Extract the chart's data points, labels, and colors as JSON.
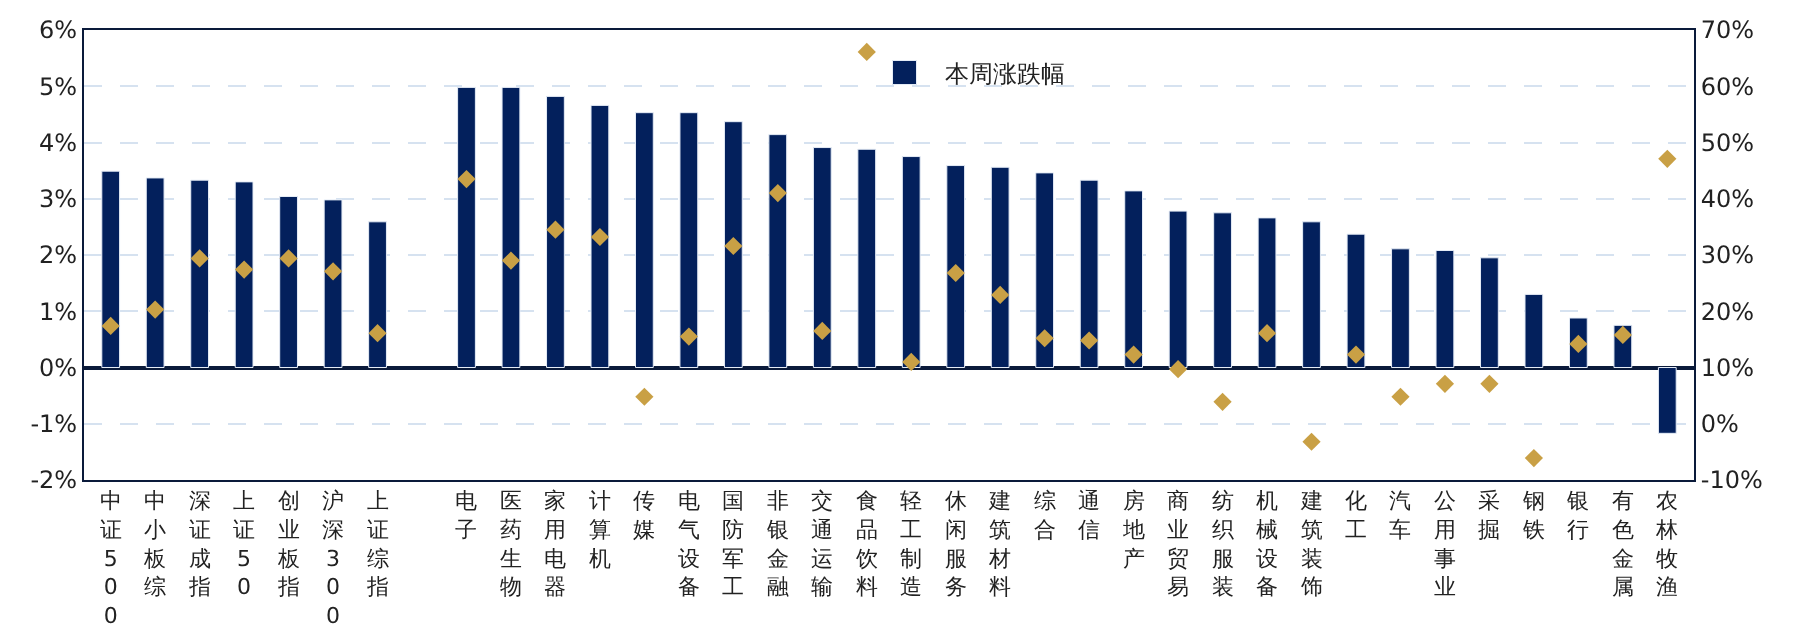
{
  "chart_data": {
    "type": "bar",
    "categories": [
      "中证500",
      "中小板综",
      "深证成指",
      "上证50",
      "创业板指",
      "沪深300",
      "上证综指",
      null,
      "电子",
      "医药生物",
      "家用电器",
      "计算机",
      "传媒",
      "电气设备",
      "国防军工",
      "非银金融",
      "交通运输",
      "食品饮料",
      "轻工制造",
      "休闲服务",
      "建筑材料",
      "综合",
      "通信",
      "房地产",
      "商业贸易",
      "纺织服装",
      "机械设备",
      "建筑装饰",
      "化工",
      "汽车",
      "公用事业",
      "采掘",
      "钢铁",
      "银行",
      "有色金属",
      "农林牧渔"
    ],
    "series": [
      {
        "name": "本周涨跌幅",
        "color": "#03205c",
        "values": [
          3.49,
          3.37,
          3.33,
          3.3,
          3.04,
          2.98,
          2.59,
          null,
          4.98,
          4.98,
          4.82,
          4.66,
          4.53,
          4.53,
          4.37,
          4.14,
          3.91,
          3.88,
          3.75,
          3.59,
          3.56,
          3.46,
          3.33,
          3.14,
          2.78,
          2.75,
          2.66,
          2.59,
          2.37,
          2.11,
          2.08,
          1.95,
          1.3,
          0.88,
          0.75,
          -1.17
        ]
      },
      {
        "type": "scatter",
        "axis": "y2",
        "marker": "diamond",
        "color": "#c9a045",
        "values": [
          17.4,
          20.3,
          29.4,
          27.4,
          29.4,
          27.1,
          16.1,
          null,
          43.5,
          29.0,
          34.5,
          33.2,
          4.8,
          15.5,
          31.6,
          41.0,
          16.5,
          66.1,
          11.0,
          26.8,
          22.9,
          15.2,
          14.8,
          12.3,
          9.7,
          3.9,
          16.1,
          -3.2,
          12.3,
          4.8,
          7.1,
          7.1,
          -6.1,
          14.2,
          15.8,
          47.1
        ]
      }
    ],
    "ylim": [
      -2,
      6
    ],
    "yticks": [
      {
        "value": -2,
        "label": "-2%"
      },
      {
        "value": -1,
        "label": "-1%"
      },
      {
        "value": 0,
        "label": "0%"
      },
      {
        "value": 1,
        "label": "1%"
      },
      {
        "value": 2,
        "label": "2%"
      },
      {
        "value": 3,
        "label": "3%"
      },
      {
        "value": 4,
        "label": "4%"
      },
      {
        "value": 5,
        "label": "5%"
      },
      {
        "value": 6,
        "label": "6%"
      }
    ],
    "y2lim": [
      -10,
      70
    ],
    "y2ticks": [
      {
        "value": -10,
        "label": "-10%"
      },
      {
        "value": 0,
        "label": "0%"
      },
      {
        "value": 10,
        "label": "10%"
      },
      {
        "value": 20,
        "label": "20%"
      },
      {
        "value": 30,
        "label": "30%"
      },
      {
        "value": 40,
        "label": "40%"
      },
      {
        "value": 50,
        "label": "50%"
      },
      {
        "value": 60,
        "label": "60%"
      },
      {
        "value": 70,
        "label": "70%"
      }
    ],
    "grid": "y",
    "legend": "top"
  }
}
